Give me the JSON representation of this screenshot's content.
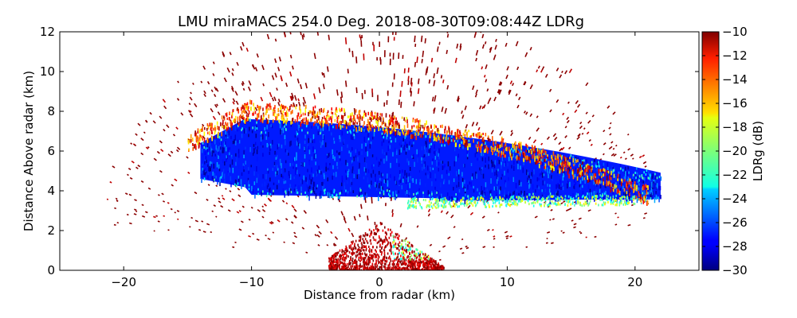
{
  "chart_data": {
    "type": "heatmap",
    "title": "LMU miraMACS 254.0 Deg. 2018-08-30T09:08:44Z  LDRg",
    "xlabel": "Distance from radar (km)",
    "ylabel": "Distance Above radar  (km)",
    "xlim": [
      -25,
      25
    ],
    "ylim": [
      0,
      12
    ],
    "xticks": [
      -20,
      -10,
      0,
      10,
      20
    ],
    "yticks": [
      0,
      2,
      4,
      6,
      8,
      10,
      12
    ],
    "colorbar": {
      "label": "LDRg (dB)",
      "range": [
        -30,
        -10
      ],
      "ticks": [
        -30,
        -28,
        -26,
        -24,
        -22,
        -20,
        -18,
        -16,
        -14,
        -12,
        -10
      ],
      "colormap": "jet"
    },
    "features": [
      {
        "name": "main-cloud-layer",
        "x_range": [
          -14,
          22
        ],
        "top_km": 8.3,
        "base_km": 3.8,
        "ldr_typical_db": -27
      },
      {
        "name": "cloud-top-high-ldr-fringe",
        "x_range": [
          -15,
          21
        ],
        "height_km": 8.0,
        "ldr_typical_db": -14
      },
      {
        "name": "cloud-base-fringe",
        "x_range": [
          2,
          20
        ],
        "height_km": 3.2,
        "ldr_typical_db": -20
      },
      {
        "name": "near-radar-clutter",
        "x_range": [
          -4,
          5
        ],
        "height_range_km": [
          0,
          2.5
        ],
        "ldr_typical_db": -11
      },
      {
        "name": "sparse-noise",
        "x_range": [
          -22,
          21
        ],
        "height_range_km": [
          0,
          12
        ],
        "ldr_typical_db": -10
      }
    ]
  }
}
